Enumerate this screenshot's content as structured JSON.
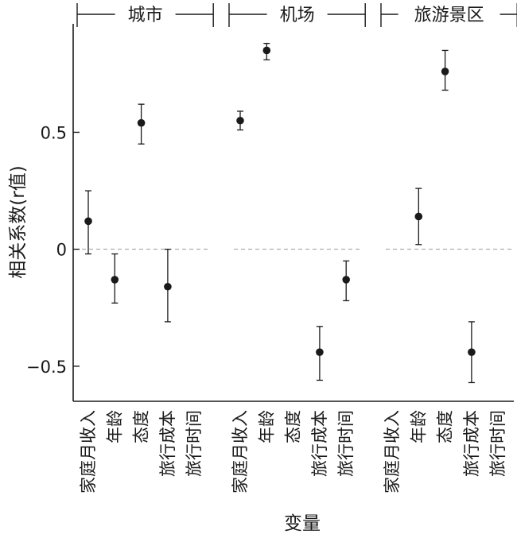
{
  "chart_data": {
    "type": "scatter",
    "error_bars": true,
    "xlabel": "变量",
    "ylabel": "相关系数(r值)",
    "ylim": [
      -0.65,
      0.95
    ],
    "yticks": [
      -0.5,
      0,
      0.5
    ],
    "ytick_labels": [
      "−0.5",
      "0",
      "0.5"
    ],
    "zero_reference_line": "dashed",
    "grid": false,
    "variables": [
      "家庭月收入",
      "年龄",
      "态度",
      "旅行成本",
      "旅行时间"
    ],
    "groups": [
      {
        "name": "城市",
        "points": [
          {
            "variable": "家庭月收入",
            "value": 0.12,
            "lower": -0.02,
            "upper": 0.25
          },
          {
            "variable": "年龄",
            "value": -0.13,
            "lower": -0.23,
            "upper": -0.02
          },
          {
            "variable": "态度",
            "value": 0.54,
            "lower": 0.45,
            "upper": 0.62
          },
          {
            "variable": "旅行成本",
            "value": -0.16,
            "lower": -0.31,
            "upper": 0.0
          },
          {
            "variable": "旅行时间",
            "value": null,
            "lower": null,
            "upper": null
          }
        ]
      },
      {
        "name": "机场",
        "points": [
          {
            "variable": "家庭月收入",
            "value": 0.55,
            "lower": 0.51,
            "upper": 0.59
          },
          {
            "variable": "年龄",
            "value": 0.85,
            "lower": 0.81,
            "upper": 0.88
          },
          {
            "variable": "态度",
            "value": null,
            "lower": null,
            "upper": null
          },
          {
            "variable": "旅行成本",
            "value": -0.44,
            "lower": -0.56,
            "upper": -0.33
          },
          {
            "variable": "旅行时间",
            "value": -0.13,
            "lower": -0.22,
            "upper": -0.05
          }
        ]
      },
      {
        "name": "旅游景区",
        "points": [
          {
            "variable": "家庭月收入",
            "value": null,
            "lower": null,
            "upper": null
          },
          {
            "variable": "年龄",
            "value": 0.14,
            "lower": 0.02,
            "upper": 0.26
          },
          {
            "variable": "态度",
            "value": 0.76,
            "lower": 0.68,
            "upper": 0.85
          },
          {
            "variable": "旅行成本",
            "value": -0.44,
            "lower": -0.57,
            "upper": -0.31
          },
          {
            "variable": "旅行时间",
            "value": null,
            "lower": null,
            "upper": null
          }
        ]
      }
    ]
  }
}
